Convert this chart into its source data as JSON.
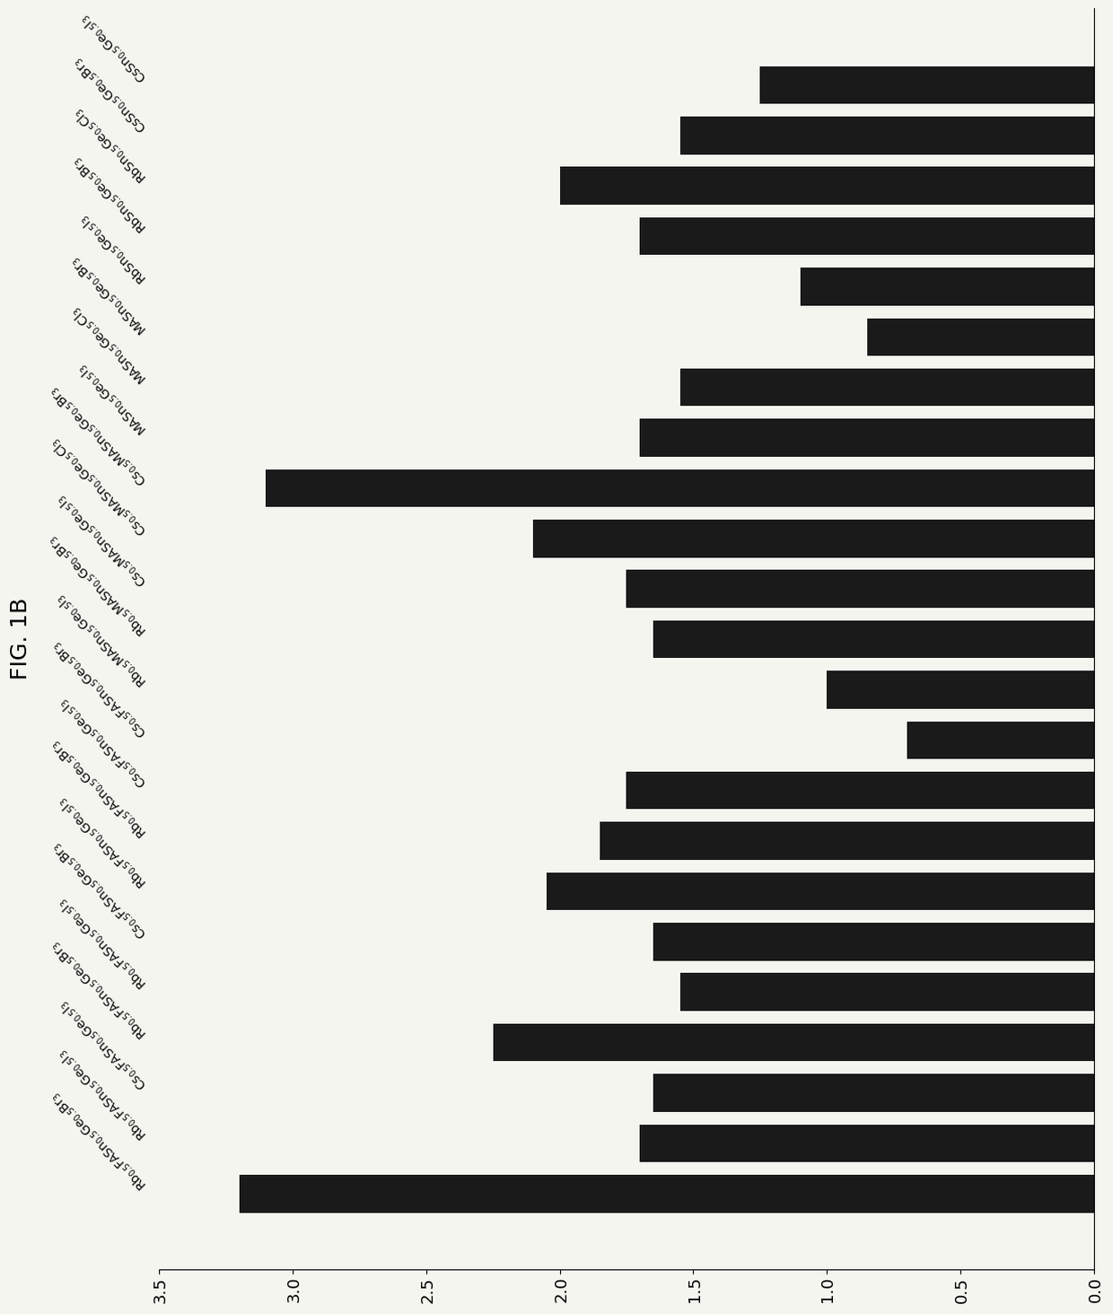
{
  "title": "FIG. 1B",
  "bar_color": "#1a1a1a",
  "background_color": "#f5f5f0",
  "xlim": [
    0.0,
    3.5
  ],
  "xticks": [
    0.0,
    0.5,
    1.0,
    1.5,
    2.0,
    2.5,
    3.0,
    3.5
  ],
  "tick_fontsize": 13,
  "title_fontsize": 18,
  "label_fontsize": 10,
  "bar_height": 0.75,
  "labels_bottom_to_top": [
    "CsSn$_{0.5}$Ge$_{0.5}$I$_3$",
    "CsSn$_{0.5}$Ge$_{0.5}$Br$_3$",
    "RbSn$_{0.5}$Ge$_{0.5}$Cl$_3$",
    "RbSn$_{0.5}$Ge$_{0.5}$Br$_3$",
    "RbSn$_{0.5}$Ge$_{0.5}$I$_3$",
    "MASn$_{0.5}$Ge$_{0.5}$Br$_3$",
    "MASn$_{0.5}$Ge$_{0.5}$Cl$_3$",
    "MASn$_{0.5}$Ge$_{0.5}$I$_3$",
    "Cs$_{0.5}$MASn$_{0.5}$Ge$_{0.5}$Br$_3$",
    "Cs$_{0.5}$MASn$_{0.5}$Ge$_{0.5}$Cl$_3$",
    "Cs$_{0.5}$MASn$_{0.5}$Ge$_{0.5}$I$_3$",
    "Rb$_{0.5}$MASn$_{0.5}$Ge$_{0.5}$Br$_3$",
    "Rb$_{0.5}$MASn$_{0.5}$Ge$_{0.5}$I$_3$",
    "Cs$_{0.5}$FASn$_{0.5}$Ge$_{0.5}$Br$_3$",
    "Cs$_{0.5}$FASn$_{0.5}$Ge$_{0.5}$I$_3$",
    "Rb$_{0.5}$FASn$_{0.5}$Ge$_{0.5}$Br$_3$",
    "Rb$_{0.5}$FASn$_{0.5}$Ge$_{0.5}$I$_3$",
    "Cs$_{0.5}$FASn$_{0.5}$Ge$_{0.5}$Br$_3$",
    "Rb$_{0.5}$FASn$_{0.5}$Ge$_{0.5}$I$_3$",
    "Rb$_{0.5}$FASn$_{0.5}$Ge$_{0.5}$Br$_3$",
    "Cs$_{0.5}$FASn$_{0.5}$Ge$_{0.5}$I$_3$",
    "Rb$_{0.5}$FASn$_{0.5}$Ge$_{0.5}$I$_3$",
    "Rb$_{0.5}$FASn$_{0.5}$Ge$_{0.5}$Br$_3$"
  ],
  "values_bottom_to_top": [
    1.25,
    1.55,
    2.0,
    1.7,
    1.1,
    0.85,
    1.55,
    1.7,
    3.1,
    2.1,
    1.75,
    1.65,
    1.0,
    0.7,
    1.75,
    1.85,
    2.05,
    1.65,
    1.55,
    2.25,
    1.65,
    1.7,
    3.2
  ]
}
